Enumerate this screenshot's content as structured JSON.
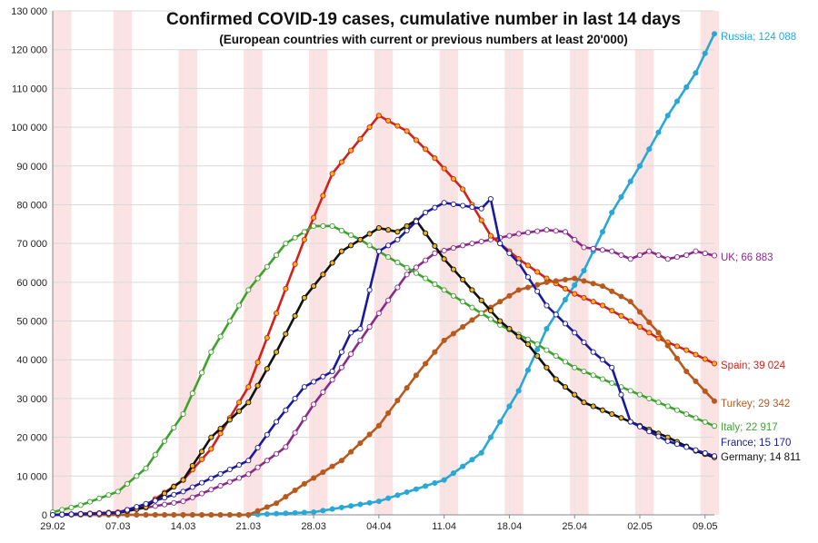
{
  "chart_data": {
    "type": "line",
    "title": "Confirmed COVID-19 cases, cumulative number in last 14 days",
    "subtitle": "(European countries with current or previous numbers at least 20'000)",
    "xlabel": "",
    "ylabel": "",
    "ylim": [
      0,
      130000
    ],
    "y_ticks": [
      0,
      10000,
      20000,
      30000,
      40000,
      50000,
      60000,
      70000,
      80000,
      90000,
      100000,
      110000,
      120000,
      130000
    ],
    "y_tick_labels": [
      "0",
      "10 000",
      "20 000",
      "30 000",
      "40 000",
      "50 000",
      "60 000",
      "70 000",
      "80 000",
      "90 000",
      "100 000",
      "110 000",
      "120 000",
      "130 000"
    ],
    "x_start": "29.02",
    "x_end": "09.05",
    "x_tick_labels": [
      "29.02",
      "07.03",
      "14.03",
      "21.03",
      "28.03",
      "04.04",
      "11.04",
      "18.04",
      "25.04",
      "02.05",
      "09.05"
    ],
    "weekend_shading": true,
    "grid": true,
    "series": [
      {
        "name": "Russia",
        "end_label": "Russia; 124 088",
        "color": "#29a8d6",
        "marker_fill": "#29a8d6",
        "keys": [
          [
            0,
            0
          ],
          [
            21,
            0
          ],
          [
            28,
            700
          ],
          [
            35,
            3500
          ],
          [
            42,
            9000
          ],
          [
            46,
            16000
          ],
          [
            50,
            32000
          ],
          [
            53,
            48000
          ],
          [
            57,
            63000
          ],
          [
            60,
            78000
          ],
          [
            63,
            90000
          ],
          [
            66,
            103000
          ],
          [
            69,
            114000
          ],
          [
            71,
            124088
          ]
        ]
      },
      {
        "name": "UK",
        "end_label": "UK; 66 883",
        "color": "#8a2a8a",
        "marker_fill": "#ffffff",
        "keys": [
          [
            0,
            0
          ],
          [
            7,
            600
          ],
          [
            14,
            3500
          ],
          [
            21,
            10500
          ],
          [
            25,
            17500
          ],
          [
            28,
            28500
          ],
          [
            31,
            38000
          ],
          [
            35,
            52000
          ],
          [
            38,
            62000
          ],
          [
            41,
            67500
          ],
          [
            44,
            69500
          ],
          [
            47,
            71000
          ],
          [
            50,
            72500
          ],
          [
            53,
            73500
          ],
          [
            55,
            73000
          ],
          [
            57,
            69000
          ],
          [
            60,
            68000
          ],
          [
            62,
            66000
          ],
          [
            64,
            68000
          ],
          [
            66,
            66000
          ],
          [
            68,
            67000
          ],
          [
            69,
            68000
          ],
          [
            71,
            66883
          ]
        ]
      },
      {
        "name": "Spain",
        "end_label": "Spain; 39 024",
        "color": "#d4201a",
        "marker_fill": "#f2b61c",
        "keys": [
          [
            0,
            0
          ],
          [
            7,
            700
          ],
          [
            10,
            2500
          ],
          [
            14,
            9000
          ],
          [
            17,
            17000
          ],
          [
            21,
            33000
          ],
          [
            24,
            52000
          ],
          [
            27,
            71000
          ],
          [
            30,
            88000
          ],
          [
            33,
            97000
          ],
          [
            35,
            103000
          ],
          [
            38,
            99000
          ],
          [
            41,
            92000
          ],
          [
            44,
            84000
          ],
          [
            47,
            72000
          ],
          [
            50,
            66000
          ],
          [
            53,
            61000
          ],
          [
            56,
            57000
          ],
          [
            59,
            54000
          ],
          [
            62,
            50000
          ],
          [
            65,
            45500
          ],
          [
            68,
            42500
          ],
          [
            71,
            39024
          ]
        ]
      },
      {
        "name": "Turkey",
        "end_label": "Turkey; 29 342",
        "color": "#b85a1e",
        "marker_fill": "#b85a1e",
        "keys": [
          [
            0,
            0
          ],
          [
            21,
            0
          ],
          [
            24,
            3000
          ],
          [
            27,
            8000
          ],
          [
            31,
            14000
          ],
          [
            35,
            23000
          ],
          [
            39,
            36000
          ],
          [
            42,
            45000
          ],
          [
            46,
            52000
          ],
          [
            50,
            58000
          ],
          [
            53,
            60000
          ],
          [
            56,
            61000
          ],
          [
            59,
            59000
          ],
          [
            62,
            55000
          ],
          [
            65,
            47000
          ],
          [
            68,
            37000
          ],
          [
            71,
            29342
          ]
        ]
      },
      {
        "name": "Italy",
        "end_label": "Italy; 22 917",
        "color": "#3ea22f",
        "marker_fill": "#ffffff",
        "keys": [
          [
            0,
            700
          ],
          [
            3,
            2500
          ],
          [
            7,
            6000
          ],
          [
            10,
            12000
          ],
          [
            14,
            26000
          ],
          [
            17,
            42000
          ],
          [
            21,
            58000
          ],
          [
            25,
            70000
          ],
          [
            28,
            74500
          ],
          [
            30,
            74500
          ],
          [
            33,
            71000
          ],
          [
            36,
            66500
          ],
          [
            40,
            61000
          ],
          [
            44,
            55000
          ],
          [
            48,
            49000
          ],
          [
            52,
            44000
          ],
          [
            56,
            38000
          ],
          [
            60,
            34000
          ],
          [
            64,
            30000
          ],
          [
            68,
            26000
          ],
          [
            71,
            22917
          ]
        ]
      },
      {
        "name": "Germany",
        "end_label": "Germany; 14 811",
        "color": "#111111",
        "marker_fill": "#f2b61c",
        "keys": [
          [
            0,
            0
          ],
          [
            7,
            500
          ],
          [
            10,
            2000
          ],
          [
            14,
            9000
          ],
          [
            17,
            20000
          ],
          [
            21,
            29000
          ],
          [
            24,
            42000
          ],
          [
            27,
            56000
          ],
          [
            31,
            68000
          ],
          [
            35,
            74000
          ],
          [
            37,
            73000
          ],
          [
            39,
            76000
          ],
          [
            42,
            66000
          ],
          [
            45,
            58000
          ],
          [
            48,
            50000
          ],
          [
            51,
            44000
          ],
          [
            54,
            35000
          ],
          [
            57,
            29000
          ],
          [
            60,
            26000
          ],
          [
            63,
            23000
          ],
          [
            66,
            20000
          ],
          [
            69,
            16500
          ],
          [
            71,
            14811
          ]
        ]
      },
      {
        "name": "France",
        "end_label": "France; 15 170",
        "color": "#1a1a9e",
        "marker_fill": "#ffffff",
        "keys": [
          [
            0,
            0
          ],
          [
            7,
            500
          ],
          [
            14,
            6000
          ],
          [
            21,
            14000
          ],
          [
            24,
            24000
          ],
          [
            27,
            33000
          ],
          [
            30,
            37000
          ],
          [
            32,
            47000
          ],
          [
            33,
            48000
          ],
          [
            35,
            68000
          ],
          [
            37,
            71000
          ],
          [
            40,
            78000
          ],
          [
            42,
            80500
          ],
          [
            46,
            79000
          ],
          [
            47,
            81500
          ],
          [
            48,
            70000
          ],
          [
            50,
            65000
          ],
          [
            53,
            54000
          ],
          [
            56,
            47000
          ],
          [
            58,
            42000
          ],
          [
            60,
            38000
          ],
          [
            62,
            24000
          ],
          [
            66,
            19000
          ],
          [
            71,
            15170
          ]
        ]
      }
    ]
  }
}
